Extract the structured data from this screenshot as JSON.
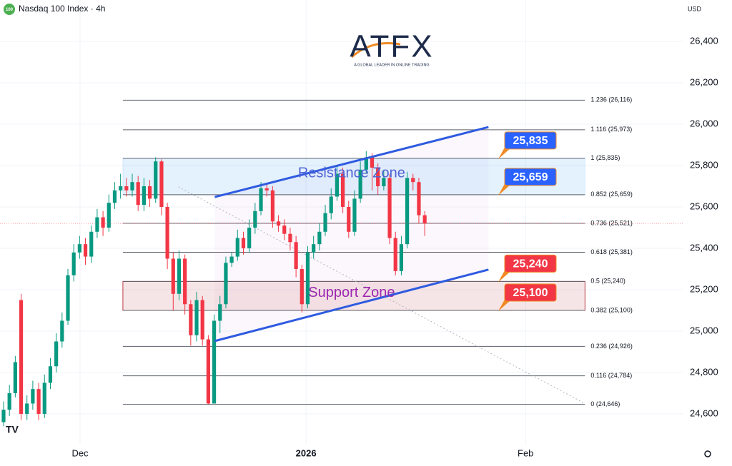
{
  "header": {
    "symbol_icon": "100",
    "title": "Nasdaq 100 Index · 4h",
    "currency": "USD"
  },
  "watermark": {
    "logo": "ATFX",
    "tagline": "A GLOBAL LEADER IN ONLINE TRADING"
  },
  "chart_data": {
    "type": "candlestick",
    "up_color": "#089981",
    "down_color": "#f23645",
    "xlim": [
      -0.61,
      116.1
    ],
    "ylim": [
      24455,
      26600
    ],
    "xticks": [
      {
        "value": 13.08,
        "label": "Dec"
      },
      {
        "value": 51.71,
        "label": "2026"
      },
      {
        "value": 89.24,
        "label": "Feb"
      }
    ],
    "yticks": [
      {
        "value": 24600,
        "label": "24,600"
      },
      {
        "value": 24800,
        "label": "24,800"
      },
      {
        "value": 25000,
        "label": "25,000"
      },
      {
        "value": 25200,
        "label": "25,200"
      },
      {
        "value": 25400,
        "label": "25,400"
      },
      {
        "value": 25600,
        "label": "25,600"
      },
      {
        "value": 25800,
        "label": "25,800"
      },
      {
        "value": 26000,
        "label": "26,000"
      },
      {
        "value": 26200,
        "label": "26,200"
      },
      {
        "value": 26400,
        "label": "26,400"
      }
    ],
    "grid": true,
    "open": [
      24560,
      24620,
      24700,
      25150,
      24600,
      24650,
      24720,
      24600,
      24750,
      24830,
      24950,
      25050,
      25270,
      25380,
      25420,
      25360,
      25480,
      25550,
      25500,
      25620,
      25680,
      25700,
      25680,
      25720,
      25610,
      25700,
      25640,
      25820,
      25600,
      25350,
      25180,
      25350,
      25130,
      24980,
      25150,
      24960,
      24650,
      25050,
      25130,
      25330,
      25360,
      25450,
      25400,
      25500,
      25580,
      25690,
      25680,
      25530,
      25510,
      25470,
      25430,
      25300,
      25130,
      25380,
      25420,
      25480,
      25570,
      25650,
      25760,
      25600,
      25480,
      25640,
      25780,
      25840,
      25790,
      25700,
      25740,
      25450,
      25290,
      25420,
      25740,
      25720,
      25560
    ],
    "high": [
      24660,
      24740,
      24880,
      25180,
      24690,
      24760,
      24750,
      24790,
      24870,
      24990,
      25090,
      25300,
      25420,
      25460,
      25450,
      25510,
      25590,
      25580,
      25660,
      25720,
      25760,
      25740,
      25760,
      25750,
      25740,
      25730,
      25840,
      25830,
      25620,
      25380,
      25390,
      25370,
      25150,
      25190,
      25170,
      24980,
      25080,
      25170,
      25360,
      25380,
      25490,
      25480,
      25540,
      25620,
      25720,
      25710,
      25700,
      25560,
      25540,
      25500,
      25460,
      25320,
      25410,
      25460,
      25520,
      25610,
      25690,
      25800,
      25790,
      25630,
      25680,
      25820,
      25870,
      25860,
      25810,
      25780,
      25760,
      25480,
      25460,
      25770,
      25760,
      25740,
      25580
    ],
    "low": [
      24540,
      24590,
      24680,
      24570,
      24570,
      24620,
      24570,
      24580,
      24720,
      24800,
      24920,
      25030,
      25240,
      25350,
      25320,
      25330,
      25450,
      25460,
      25480,
      25590,
      25640,
      25650,
      25650,
      25580,
      25580,
      25600,
      25620,
      25560,
      25300,
      25100,
      25150,
      25080,
      24930,
      24950,
      24930,
      24646,
      24650,
      24990,
      25110,
      25310,
      25340,
      25370,
      25380,
      25470,
      25560,
      25650,
      25500,
      25480,
      25440,
      25390,
      25260,
      25090,
      25110,
      25350,
      25390,
      25460,
      25540,
      25630,
      25570,
      25450,
      25460,
      25620,
      25760,
      25680,
      25660,
      25680,
      25420,
      25270,
      25270,
      25400,
      25680,
      25520,
      25460
    ],
    "close": [
      24620,
      24700,
      24850,
      24600,
      24650,
      24720,
      24600,
      24750,
      24830,
      24950,
      25050,
      25270,
      25380,
      25420,
      25360,
      25480,
      25550,
      25500,
      25620,
      25680,
      25700,
      25680,
      25720,
      25610,
      25700,
      25640,
      25820,
      25600,
      25350,
      25180,
      25350,
      25130,
      24980,
      25150,
      24960,
      24650,
      25050,
      25130,
      25330,
      25360,
      25450,
      25400,
      25500,
      25580,
      25690,
      25680,
      25530,
      25510,
      25470,
      25430,
      25300,
      25130,
      25380,
      25420,
      25480,
      25570,
      25650,
      25760,
      25600,
      25480,
      25640,
      25780,
      25840,
      25790,
      25700,
      25740,
      25450,
      25290,
      25420,
      25740,
      25720,
      25560,
      25520
    ],
    "fibonacci": {
      "x": [
        20.4,
        99.4
      ],
      "color": "#5d606b",
      "prices": [
        26116,
        25973,
        25835,
        25659,
        25521,
        25381,
        25240,
        25100,
        24926,
        24784,
        24646
      ],
      "labels": [
        "1.236 (26,116)",
        "1.116 (25,973)",
        "1 (25,835)",
        "0.852 (25,659)",
        "0.736 (25,521)",
        "0.618 (25,381)",
        "0.5 (25,240)",
        "0.382 (25,100)",
        "0.236 (24,926)",
        "0.116 (24,784)",
        "0 (24,646)"
      ]
    },
    "zones": [
      {
        "name": "Resistance Zone",
        "from": 25659,
        "to": 25835,
        "x": [
          20.4,
          99.4
        ],
        "color": "#2196f3",
        "text_color": "#4f64d6"
      },
      {
        "name": "Support Zone",
        "from": 25100,
        "to": 25240,
        "x": [
          20.4,
          99.4
        ],
        "color": "#b22833",
        "text_color": "#9c27b0"
      }
    ],
    "channel": {
      "x": [
        36.1,
        82.9
      ],
      "upper": [
        25648,
        25986
      ],
      "lower": [
        24952,
        25297
      ],
      "color": "#2f5be0"
    },
    "trend_line": {
      "x": [
        29.9,
        99.4
      ],
      "y": [
        25697,
        24650
      ],
      "color": "#b2b5be"
    },
    "price_labels": {
      "values": [
        25835,
        25659,
        25240,
        25100
      ],
      "value_labels": [
        "25,835",
        "25,659",
        "25,240",
        "25,100"
      ],
      "colors": [
        "#2962ff",
        "#2962ff",
        "#f23645",
        "#f23645"
      ]
    }
  }
}
